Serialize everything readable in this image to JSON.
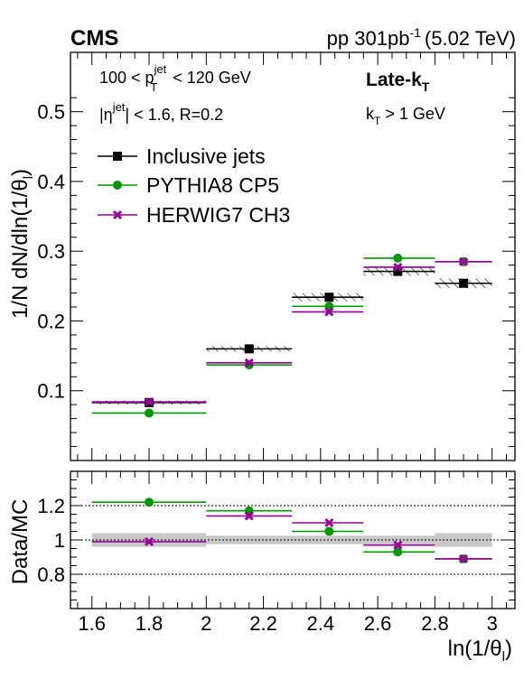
{
  "header": {
    "experiment": "CMS",
    "lumi_prefix": "pp 301",
    "lumi_unit": "pb",
    "lumi_exp": "-1",
    "energy": "(5.02 TeV)"
  },
  "annotations": {
    "pt_cut": {
      "lo": "100 < p",
      "sup": "jet",
      "sub": "T",
      "hi": " < 120 GeV"
    },
    "eta_cut": {
      "pre": "|η",
      "sup": "jet",
      "post": "| < 1.6, R=0.2"
    },
    "algo": {
      "main": "Late-k",
      "sub": "T"
    },
    "kt_cut": {
      "main": "k",
      "sub": "T",
      "post": " > 1 GeV"
    }
  },
  "chart_data": [
    {
      "type": "scatter",
      "panel": "main",
      "ylabel": {
        "main": "1/N dN/dln(1/θ",
        "sub": "l",
        "post": ")"
      },
      "ylim": [
        0.0,
        0.585
      ],
      "yticks": [
        0.1,
        0.2,
        0.3,
        0.4,
        0.5
      ],
      "ytick_labels": [
        "0.1",
        "0.2",
        "0.3",
        "0.4",
        "0.5"
      ],
      "xlim": [
        1.525,
        3.08
      ],
      "legend_position": "top-left",
      "bins": [
        [
          1.6,
          2.0
        ],
        [
          2.0,
          2.3
        ],
        [
          2.3,
          2.55
        ],
        [
          2.55,
          2.8
        ],
        [
          2.8,
          3.0
        ]
      ],
      "series": [
        {
          "name": "Inclusive jets",
          "marker": "square",
          "color": "#000000",
          "x": [
            1.8,
            2.15,
            2.43,
            2.67,
            2.9
          ],
          "y": [
            0.083,
            0.16,
            0.234,
            0.271,
            0.254
          ],
          "sys": [
            0.003,
            0.004,
            0.006,
            0.006,
            0.007
          ]
        },
        {
          "name": "PYTHIA8 CP5",
          "marker": "circle",
          "color": "#009900",
          "x": [
            1.8,
            2.15,
            2.43,
            2.67,
            2.9
          ],
          "y": [
            0.068,
            0.137,
            0.221,
            0.29,
            0.285
          ]
        },
        {
          "name": "HERWIG7 CH3",
          "marker": "cross",
          "color": "#990099",
          "x": [
            1.8,
            2.15,
            2.43,
            2.67,
            2.9
          ],
          "y": [
            0.084,
            0.14,
            0.213,
            0.277,
            0.285
          ]
        }
      ]
    },
    {
      "type": "scatter",
      "panel": "ratio",
      "ylabel": "Data/MC",
      "xlabel": {
        "main": "ln(1/θ",
        "sub": "l",
        "post": ")"
      },
      "ylim": [
        0.6,
        1.4
      ],
      "yticks": [
        0.8,
        1.0,
        1.2
      ],
      "ytick_labels": [
        "0.8",
        "1",
        "1.2"
      ],
      "reference_lines": [
        0.8,
        1.0,
        1.2
      ],
      "xlim": [
        1.525,
        3.08
      ],
      "xticks": [
        1.6,
        1.8,
        2.0,
        2.2,
        2.4,
        2.6,
        2.8,
        3.0
      ],
      "xtick_labels": [
        "1.6",
        "1.8",
        "2",
        "2.2",
        "2.4",
        "2.6",
        "2.8",
        "3"
      ],
      "bins": [
        [
          1.6,
          2.0
        ],
        [
          2.0,
          2.3
        ],
        [
          2.3,
          2.55
        ],
        [
          2.55,
          2.8
        ],
        [
          2.8,
          3.0
        ]
      ],
      "band": {
        "half_width": [
          0.04,
          0.025,
          0.025,
          0.025,
          0.04
        ],
        "color": "#c8c8c8"
      },
      "series": [
        {
          "name": "PYTHIA8 CP5",
          "marker": "circle",
          "color": "#009900",
          "x": [
            1.8,
            2.15,
            2.43,
            2.67,
            2.9
          ],
          "y": [
            1.22,
            1.17,
            1.05,
            0.93,
            0.89
          ]
        },
        {
          "name": "HERWIG7 CH3",
          "marker": "cross",
          "color": "#990099",
          "x": [
            1.8,
            2.15,
            2.43,
            2.67,
            2.9
          ],
          "y": [
            0.99,
            1.14,
            1.1,
            0.97,
            0.89
          ]
        }
      ]
    }
  ]
}
